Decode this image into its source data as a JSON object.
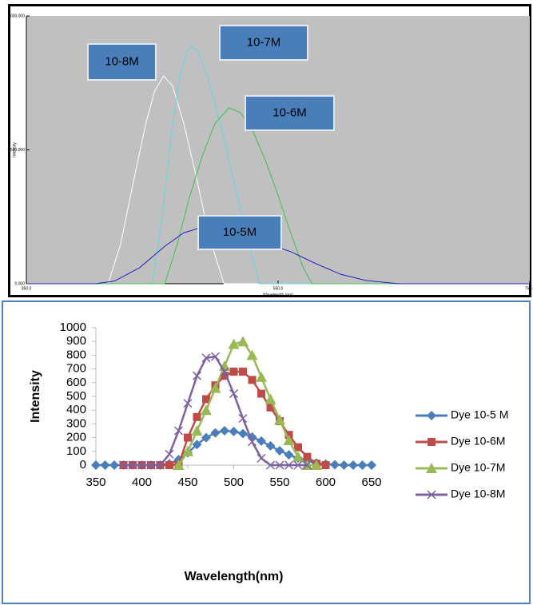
{
  "chart_data": [
    {
      "type": "line",
      "background": "#c0c0c0",
      "x_label": "Wavelength (nm)",
      "y_label": "Intensity",
      "xlim": [
        350,
        750
      ],
      "xticks": [
        {
          "value": 350,
          "label": "350.0"
        },
        {
          "value": 550,
          "label": "550.0"
        },
        {
          "value": 750,
          "label": "750.0"
        }
      ],
      "ylim": [
        0,
        1000
      ],
      "yticks": [
        {
          "value": 0,
          "label": "0.000"
        },
        {
          "value": 500,
          "label": "500.000"
        },
        {
          "value": 1000,
          "label": "1000.000"
        }
      ],
      "annotations": [
        "10-8M",
        "10-7M",
        "10-6M",
        "10-5M"
      ],
      "series": [
        {
          "color": "#ffffff",
          "x": [
            350,
            415,
            425,
            435,
            445,
            452,
            459,
            466,
            475,
            485,
            495,
            507,
            750
          ],
          "values": [
            0,
            0,
            150,
            380,
            600,
            720,
            776,
            740,
            600,
            400,
            180,
            0,
            0
          ]
        },
        {
          "color": "#5fd8e0",
          "x": [
            350,
            450,
            458,
            465,
            472,
            478,
            481,
            486,
            495,
            505,
            515,
            525,
            535,
            750
          ],
          "values": [
            0,
            0,
            250,
            550,
            780,
            870,
            887,
            870,
            760,
            580,
            380,
            180,
            0,
            0
          ]
        },
        {
          "color": "#3fc04a",
          "x": [
            350,
            460,
            470,
            480,
            490,
            500,
            511,
            520,
            530,
            540,
            550,
            560,
            570,
            577,
            750
          ],
          "values": [
            0,
            0,
            150,
            330,
            480,
            600,
            657,
            640,
            570,
            460,
            330,
            190,
            60,
            0,
            0
          ]
        },
        {
          "color": "#2020c0",
          "x": [
            350,
            405,
            420,
            440,
            460,
            475,
            488,
            500,
            520,
            540,
            560,
            580,
            600,
            620,
            646,
            700,
            750
          ],
          "values": [
            0,
            0,
            10,
            60,
            140,
            190,
            209,
            200,
            175,
            150,
            120,
            75,
            35,
            12,
            0,
            0,
            0
          ]
        }
      ]
    },
    {
      "type": "line",
      "background": "#ffffff",
      "x_label": "Wavelength(nm)",
      "y_label": "Intensity",
      "xlim": [
        350,
        650
      ],
      "xticks": [
        350,
        400,
        450,
        500,
        550,
        600,
        650
      ],
      "ylim": [
        0,
        1000
      ],
      "yticks": [
        0,
        100,
        200,
        300,
        400,
        500,
        600,
        700,
        800,
        900,
        1000
      ],
      "series": [
        {
          "name": "Dye 10-5 M",
          "color": "#4a7ebb",
          "marker": "diamond",
          "x": [
            350,
            360,
            370,
            380,
            390,
            400,
            410,
            420,
            430,
            440,
            450,
            460,
            470,
            480,
            490,
            500,
            510,
            520,
            530,
            540,
            550,
            560,
            570,
            580,
            590,
            600,
            610,
            620,
            630,
            640,
            650
          ],
          "values": [
            0,
            0,
            0,
            0,
            0,
            0,
            0,
            0,
            10,
            40,
            90,
            150,
            200,
            235,
            250,
            245,
            230,
            205,
            175,
            140,
            105,
            75,
            50,
            30,
            15,
            8,
            3,
            0,
            0,
            0,
            0
          ]
        },
        {
          "name": "Dye 10-6M",
          "color": "#be4b48",
          "marker": "square",
          "x": [
            380,
            390,
            400,
            410,
            420,
            430,
            440,
            450,
            460,
            470,
            480,
            490,
            500,
            510,
            520,
            530,
            540,
            550,
            560,
            570,
            580,
            590,
            600
          ],
          "values": [
            0,
            0,
            0,
            0,
            0,
            0,
            0,
            200,
            350,
            480,
            580,
            650,
            680,
            680,
            620,
            520,
            420,
            320,
            220,
            130,
            60,
            10,
            0
          ]
        },
        {
          "name": "Dye 10-7M",
          "color": "#98b954",
          "marker": "triangle",
          "x": [
            440,
            450,
            460,
            470,
            480,
            490,
            500,
            510,
            520,
            530,
            540,
            550,
            560,
            570,
            580,
            590
          ],
          "values": [
            0,
            100,
            250,
            400,
            560,
            720,
            880,
            900,
            800,
            640,
            480,
            330,
            180,
            60,
            0,
            0
          ]
        },
        {
          "name": "Dye 10-8M",
          "color": "#7d60a0",
          "marker": "x",
          "x": [
            380,
            390,
            400,
            410,
            420,
            430,
            440,
            450,
            460,
            470,
            480,
            490,
            500,
            510,
            520,
            530,
            540,
            550,
            560,
            570,
            580
          ],
          "values": [
            0,
            0,
            0,
            0,
            0,
            80,
            250,
            450,
            650,
            780,
            790,
            680,
            520,
            340,
            170,
            50,
            0,
            0,
            0,
            0,
            0
          ]
        }
      ]
    }
  ]
}
